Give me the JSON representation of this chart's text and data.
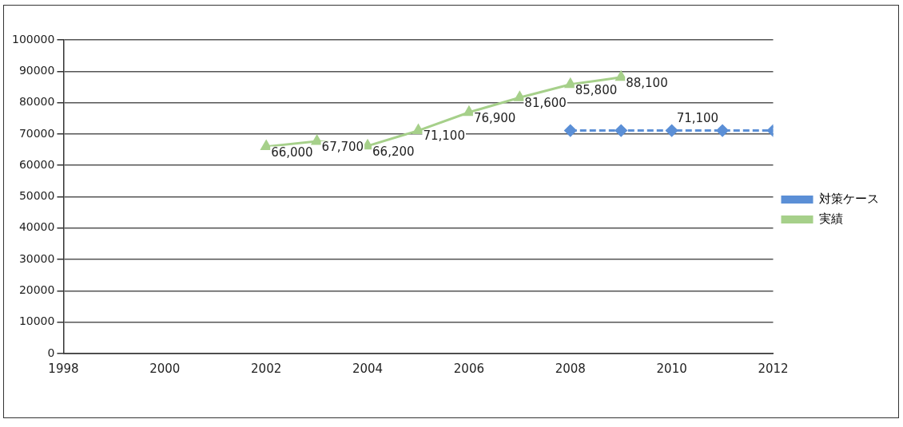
{
  "chart_data": {
    "type": "line",
    "xlim": [
      1998,
      2012
    ],
    "xticks": [
      1998,
      2000,
      2002,
      2004,
      2006,
      2008,
      2010,
      2012
    ],
    "ylim": [
      0,
      100000
    ],
    "yticks": [
      0,
      10000,
      20000,
      30000,
      40000,
      50000,
      60000,
      70000,
      80000,
      90000,
      100000
    ],
    "grid": "y",
    "legend": "right",
    "series": [
      {
        "name": "対策ケース",
        "color": "#5b8fd6",
        "marker": "diamond",
        "line_style": "dashed",
        "x": [
          2008,
          2009,
          2010,
          2011,
          2012
        ],
        "values": [
          71100,
          71100,
          71100,
          71100,
          71100
        ],
        "value_labels": [
          null,
          null,
          "71,100",
          null,
          null
        ]
      },
      {
        "name": "実績",
        "color": "#a6d08a",
        "marker": "triangle",
        "line_style": "solid",
        "x": [
          2002,
          2003,
          2004,
          2005,
          2006,
          2007,
          2008,
          2009
        ],
        "values": [
          66000,
          67700,
          66200,
          71100,
          76900,
          81600,
          85800,
          88100
        ],
        "value_labels": [
          "66,000",
          "67,700",
          "66,200",
          "71,100",
          "76,900",
          "81,600",
          "85,800",
          "88,100"
        ]
      }
    ]
  }
}
